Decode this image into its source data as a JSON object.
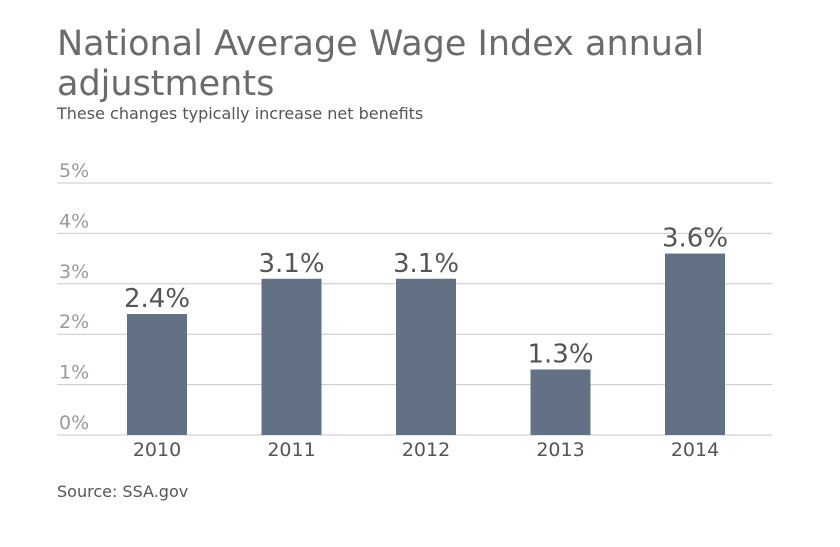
{
  "title": "National Average Wage Index annual adjustments",
  "subtitle": "These changes typically increase net benefits",
  "source": "Source: SSA.gov",
  "colors": {
    "bar": "#637184",
    "grid": "#c8c8c8"
  },
  "chart_data": {
    "type": "bar",
    "categories": [
      "2010",
      "2011",
      "2012",
      "2013",
      "2014"
    ],
    "values": [
      2.4,
      3.1,
      3.1,
      1.3,
      3.6
    ],
    "value_labels": [
      "2.4%",
      "3.1%",
      "3.1%",
      "1.3%",
      "3.6%"
    ],
    "yticks": [
      "0%",
      "1%",
      "2%",
      "3%",
      "4%",
      "5%"
    ],
    "ylim": [
      0,
      5
    ],
    "grid": true,
    "xlabel": "",
    "ylabel": ""
  }
}
